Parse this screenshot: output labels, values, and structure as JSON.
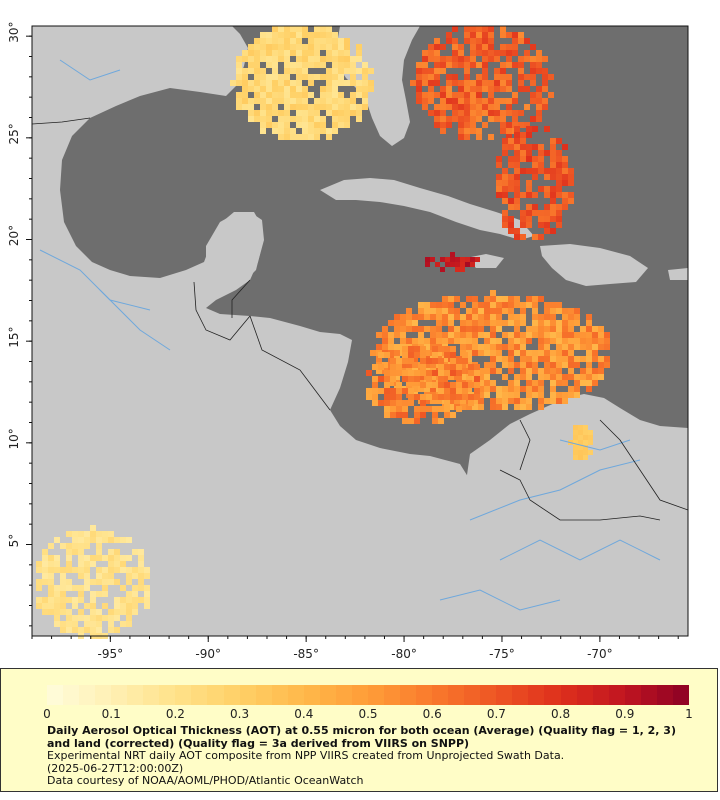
{
  "map": {
    "lon_range": [
      -99,
      -65.5
    ],
    "lat_range": [
      0.5,
      30.5
    ],
    "x_ticks": [
      "-95°",
      "-90°",
      "-85°",
      "-80°",
      "-75°",
      "-70°"
    ],
    "y_ticks": [
      "30°",
      "25°",
      "20°",
      "15°",
      "10°",
      "5°"
    ],
    "colors": {
      "ocean_nodata": "#6e6e6e",
      "land": "#c8c8c8",
      "rivers": "#6fa8dc",
      "borders": "#222222"
    }
  },
  "legend": {
    "ticks": [
      "0",
      "0.1",
      "0.2",
      "0.3",
      "0.4",
      "0.5",
      "0.6",
      "0.7",
      "0.8",
      "0.9",
      "1"
    ],
    "ramp_colors": [
      "#fffddc",
      "#fff0b4",
      "#ffe28a",
      "#ffd066",
      "#ffb84a",
      "#ff9d38",
      "#f97a2c",
      "#ee5524",
      "#de2f1c",
      "#c01520",
      "#8b0024"
    ],
    "title": "Daily Aerosol Optical Thickness (AOT) at 0.55 micron for both ocean (Average) (Quality flag = 1, 2, 3) and land (corrected) (Quality flag = 3a derived from VIIRS on SNPP)",
    "line1": "Experimental NRT daily AOT composite from NPP VIIRS created from Unprojected Swath Data.",
    "line2": "(2025-06-27T12:00:00Z)",
    "line3": "Data courtesy of NOAA/AOML/PHOD/Atlantic OceanWatch"
  }
}
